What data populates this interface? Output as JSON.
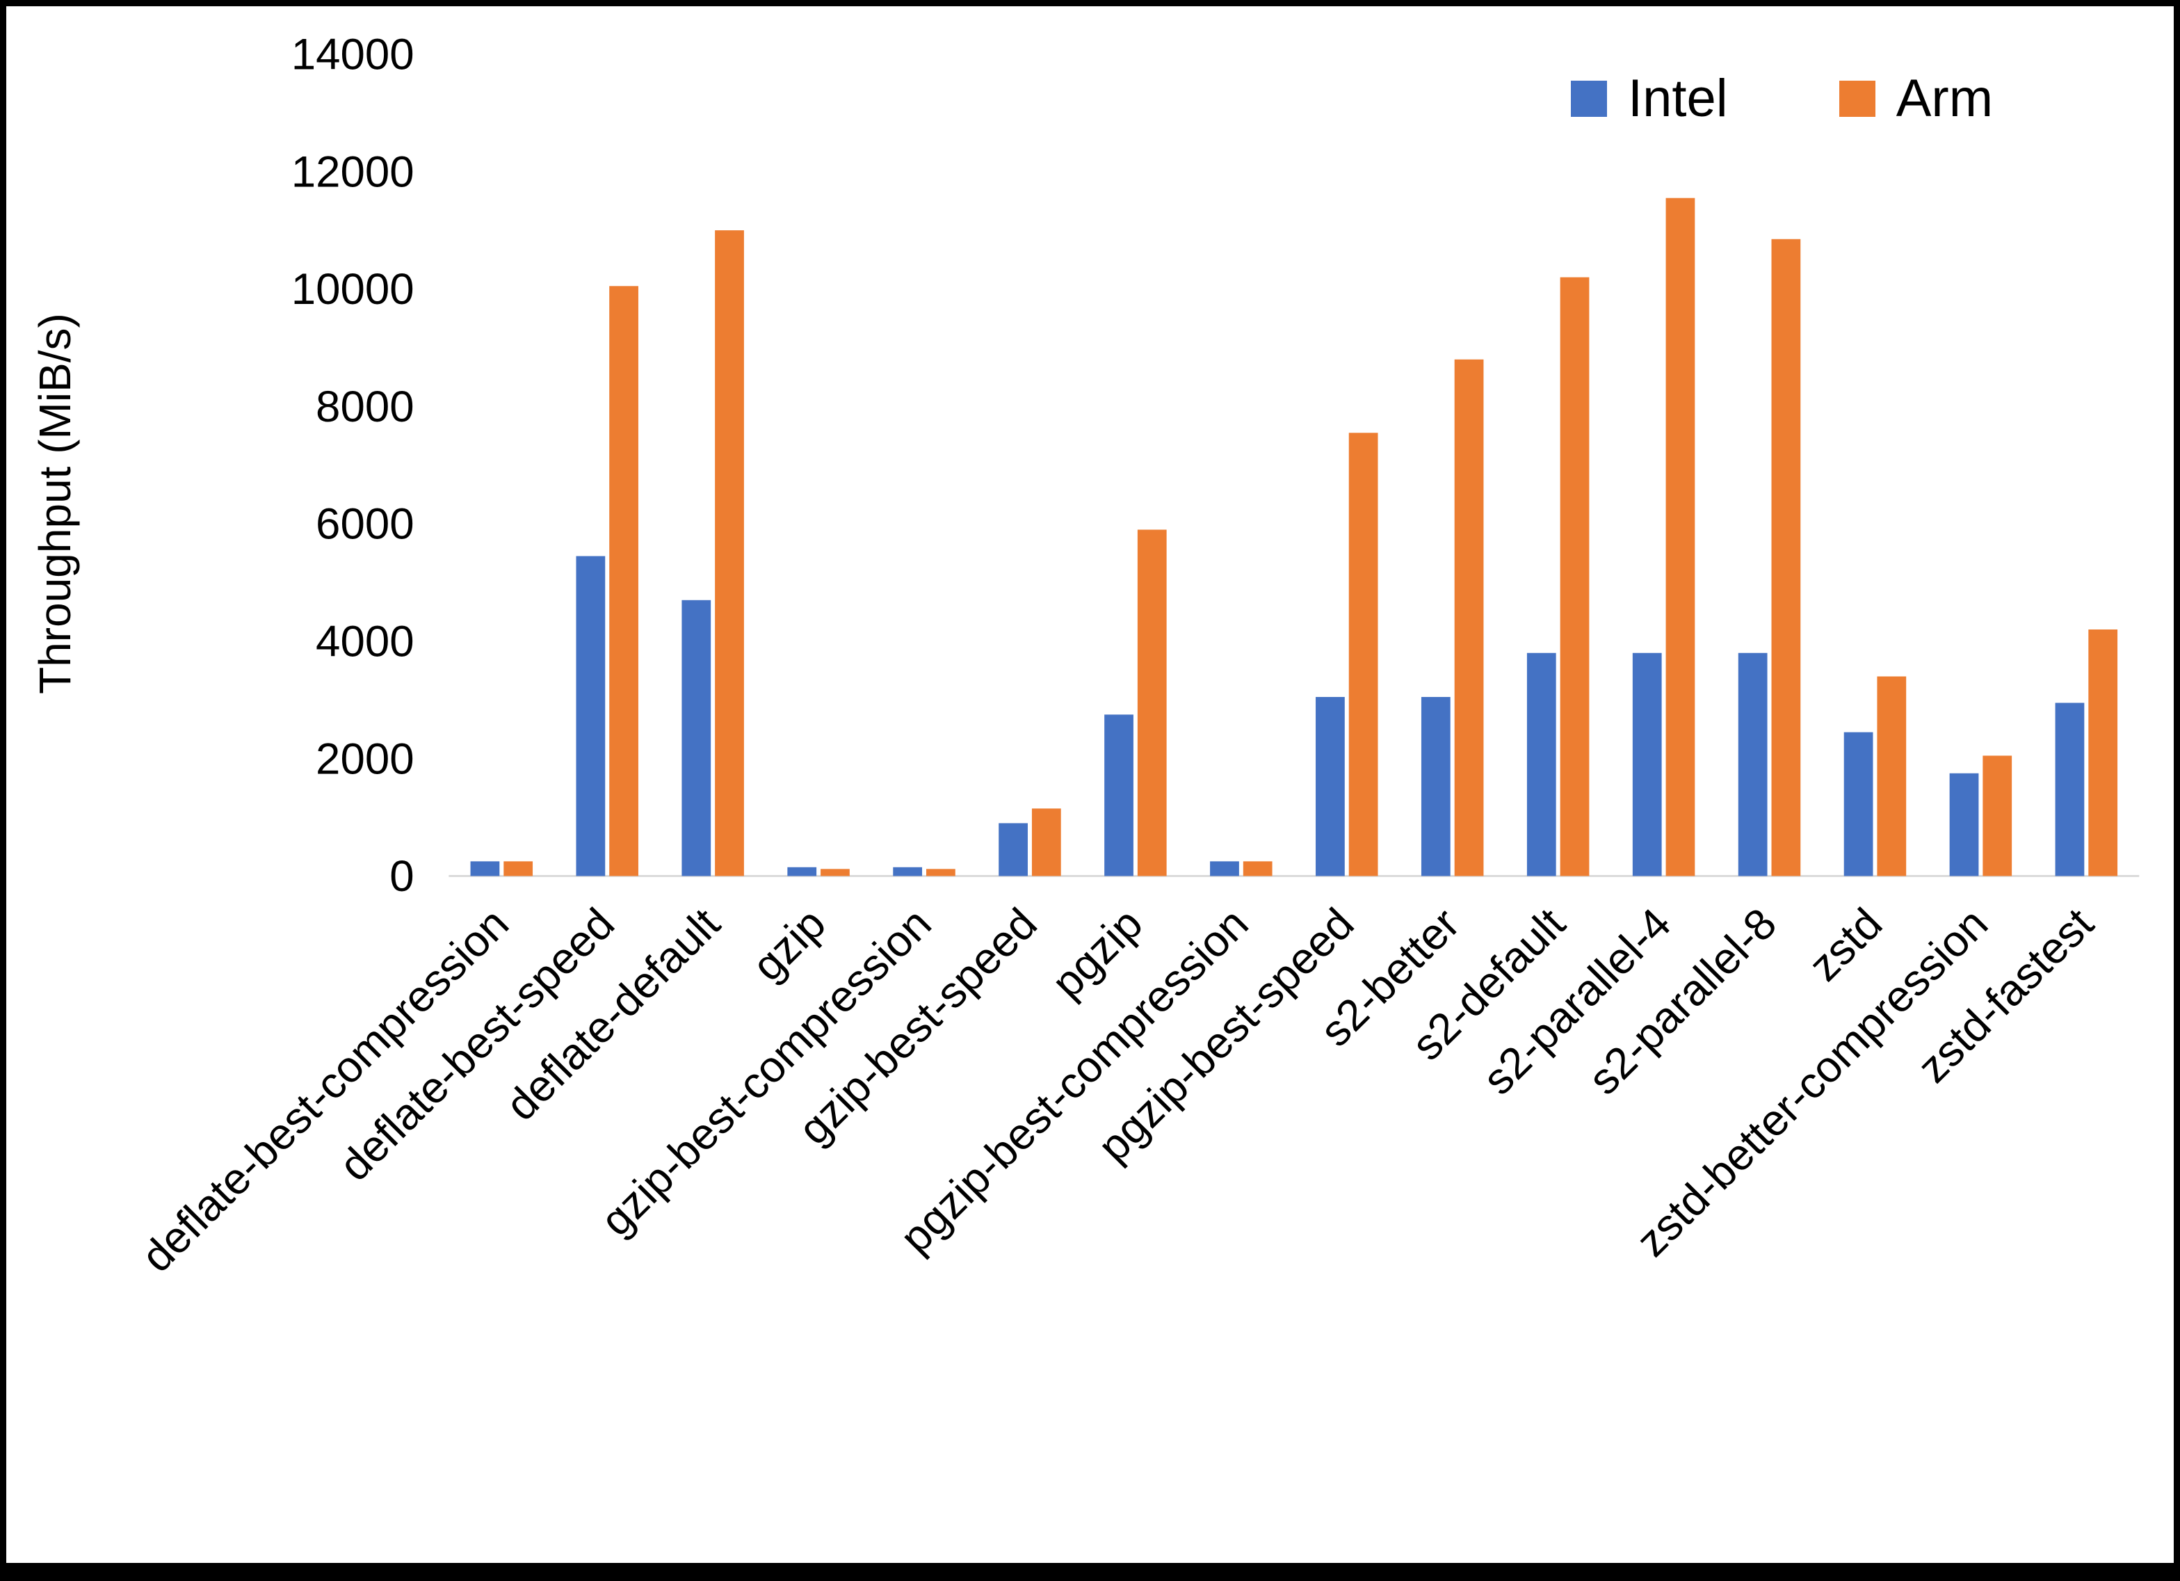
{
  "page": {
    "background": "#ffffff",
    "border_color": "#000000",
    "axis_line_color": "#d9d9d9",
    "text_color": "#000000"
  },
  "chart_data": {
    "type": "bar",
    "title": "",
    "xlabel": "",
    "ylabel": "Throughput (MiB/s)",
    "ylim": [
      0,
      14000
    ],
    "ytick_interval": 2000,
    "grid": false,
    "legend_position": "top-right",
    "categories": [
      "deflate-best-compression",
      "deflate-best-speed",
      "deflate-default",
      "gzip",
      "gzip-best-compression",
      "gzip-best-speed",
      "pgzip",
      "pgzip-best-compression",
      "pgzip-best-speed",
      "s2-better",
      "s2-default",
      "s2-parallel-4",
      "s2-parallel-8",
      "zstd",
      "zstd-better-compression",
      "zstd-fastest"
    ],
    "series": [
      {
        "name": "Intel",
        "color": "#4472C4",
        "values": [
          250,
          5450,
          4700,
          150,
          150,
          900,
          2750,
          250,
          3050,
          3050,
          3800,
          3800,
          3800,
          2450,
          1750,
          2950
        ]
      },
      {
        "name": "Arm",
        "color": "#ED7D31",
        "values": [
          250,
          10050,
          11000,
          120,
          120,
          1150,
          5900,
          250,
          7550,
          8800,
          10200,
          11550,
          10850,
          3400,
          2050,
          4200
        ]
      }
    ]
  }
}
